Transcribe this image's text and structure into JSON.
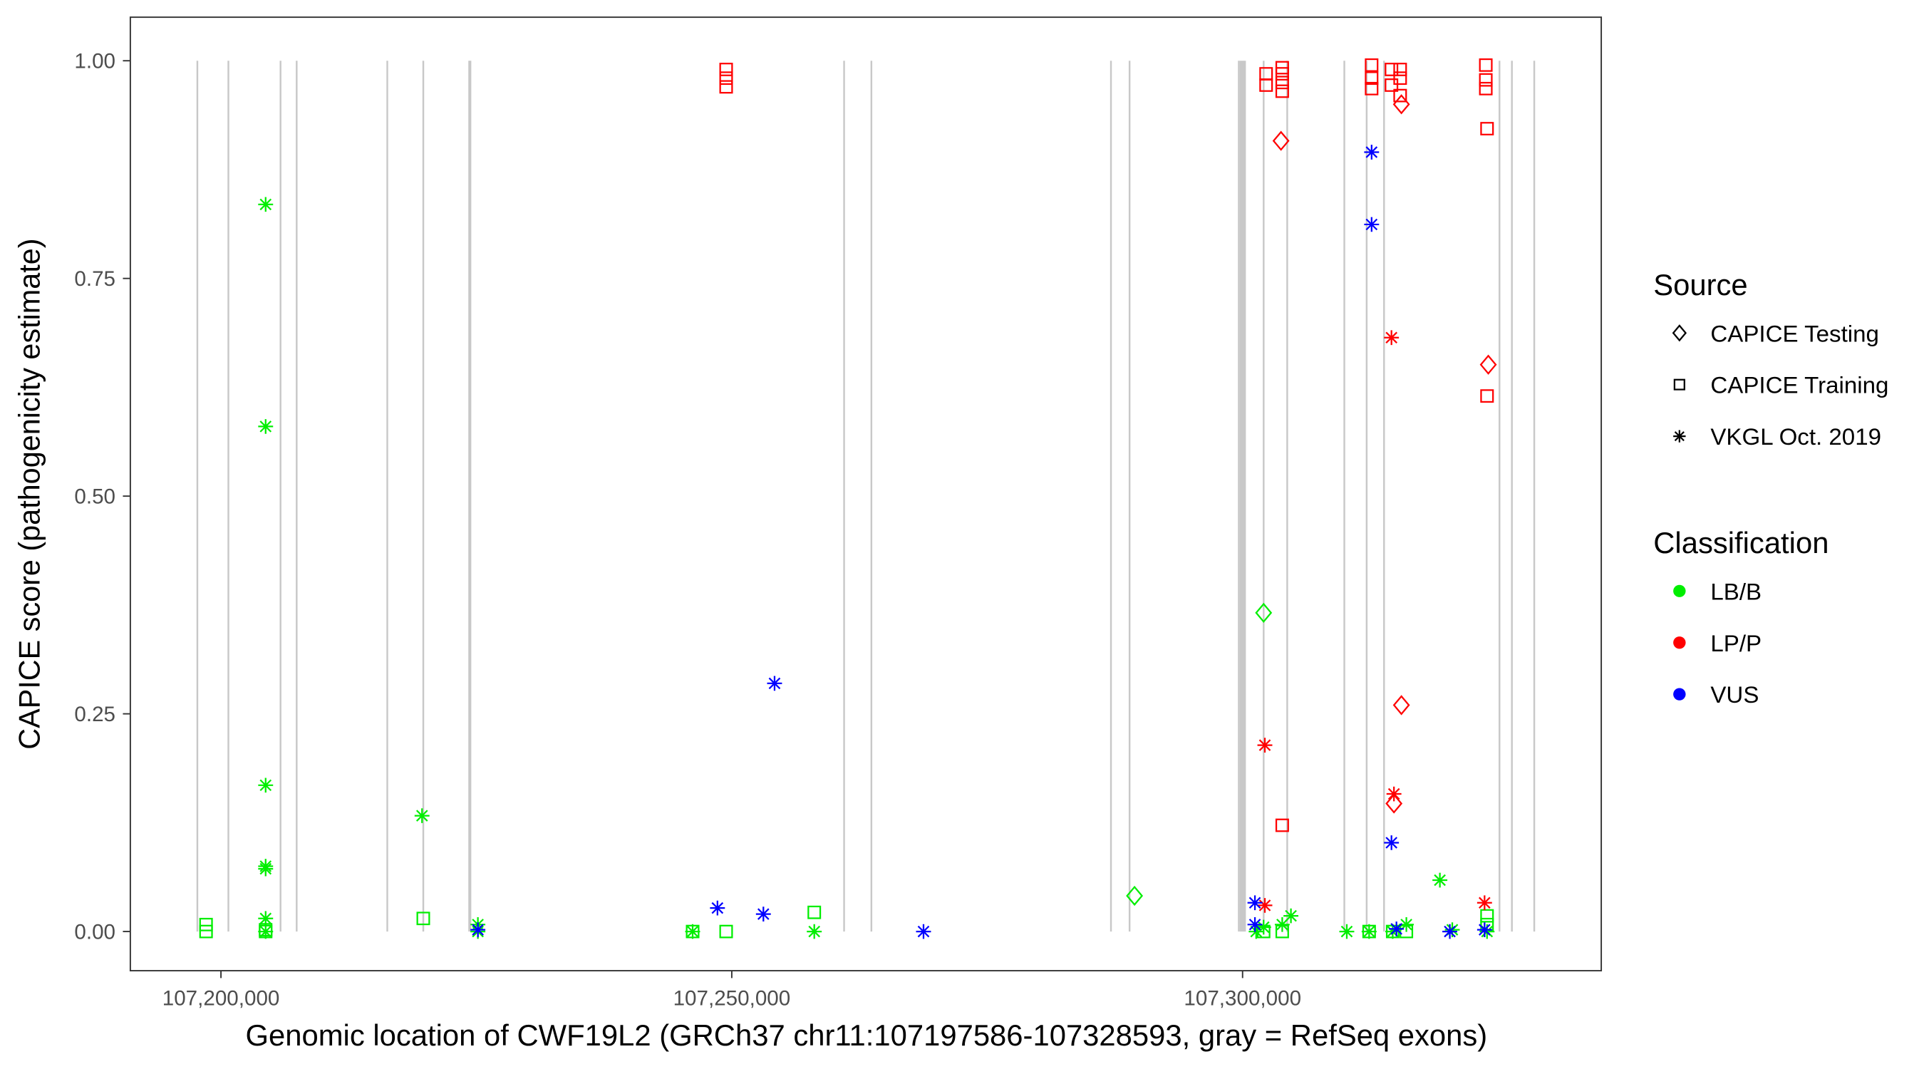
{
  "chart_data": {
    "type": "scatter",
    "xlabel": "Genomic location of CWF19L2 (GRCh37 chr11:107197586-107328593, gray = RefSeq exons)",
    "ylabel": "CAPICE score (pathogenicity estimate)",
    "xlim": [
      107191130,
      107335110
    ],
    "ylim": [
      -0.045,
      1.05
    ],
    "x_ticks": [
      107200000,
      107250000,
      107300000
    ],
    "x_tick_labels": [
      "107,200,000",
      "107,250,000",
      "107,300,000"
    ],
    "y_ticks": [
      0,
      0.25,
      0.5,
      0.75,
      1.0
    ],
    "y_tick_labels": [
      "0.00",
      "0.25",
      "0.50",
      "0.75",
      "1.00"
    ],
    "exons": [
      107197691,
      107200729,
      107205832,
      107207412,
      107216282,
      107219805,
      107224300,
      107224420,
      107260995,
      107263668,
      107287118,
      107288940,
      107299631,
      107299800,
      107299950,
      107300100,
      107300240,
      107302063,
      107304371,
      107309960,
      107312147,
      107313848,
      107325148,
      107326363,
      107328550
    ],
    "legend": {
      "source_title": "Source",
      "source_items": [
        {
          "label": "CAPICE Testing",
          "shape": "diamond"
        },
        {
          "label": "CAPICE Training",
          "shape": "square"
        },
        {
          "label": "VKGL Oct. 2019",
          "shape": "asterisk"
        }
      ],
      "class_title": "Classification",
      "class_items": [
        {
          "label": "LB/B",
          "color": "#00ee00"
        },
        {
          "label": "LP/P",
          "color": "#ff0000"
        },
        {
          "label": "VUS",
          "color": "#0000ff"
        }
      ],
      "placement": "right"
    },
    "colors": {
      "LB/B": "#00ee00",
      "LP/P": "#ff0000",
      "VUS": "#0000ff",
      "exon": "#c8c8c8"
    },
    "point_fields": [
      "position",
      "score",
      "classification",
      "source"
    ],
    "points": [
      [
        107198542,
        0.008,
        "LB/B",
        "CAPICE Training"
      ],
      [
        107198542,
        0.0,
        "LB/B",
        "CAPICE Training"
      ],
      [
        107204374,
        0.835,
        "LB/B",
        "VKGL Oct. 2019"
      ],
      [
        107204374,
        0.58,
        "LB/B",
        "VKGL Oct. 2019"
      ],
      [
        107204374,
        0.168,
        "LB/B",
        "VKGL Oct. 2019"
      ],
      [
        107204374,
        0.075,
        "LB/B",
        "VKGL Oct. 2019"
      ],
      [
        107204374,
        0.072,
        "LB/B",
        "VKGL Oct. 2019"
      ],
      [
        107204374,
        0.015,
        "LB/B",
        "VKGL Oct. 2019"
      ],
      [
        107204374,
        0.0,
        "LB/B",
        "VKGL Oct. 2019"
      ],
      [
        107204374,
        0.0,
        "LB/B",
        "CAPICE Training"
      ],
      [
        107204374,
        0.002,
        "LB/B",
        "CAPICE Training"
      ],
      [
        107219683,
        0.133,
        "LB/B",
        "VKGL Oct. 2019"
      ],
      [
        107219805,
        0.015,
        "LB/B",
        "CAPICE Training"
      ],
      [
        107225150,
        0.008,
        "LB/B",
        "VKGL Oct. 2019"
      ],
      [
        107225150,
        0.0,
        "LB/B",
        "VKGL Oct. 2019"
      ],
      [
        107225150,
        0.002,
        "VUS",
        "VKGL Oct. 2019"
      ],
      [
        107246170,
        0.0,
        "LB/B",
        "VKGL Oct. 2019"
      ],
      [
        107246170,
        0.0,
        "LB/B",
        "CAPICE Training"
      ],
      [
        107249450,
        0.0,
        "LB/B",
        "CAPICE Training"
      ],
      [
        107258077,
        0.022,
        "LB/B",
        "CAPICE Training"
      ],
      [
        107258077,
        0.0,
        "LB/B",
        "VKGL Oct. 2019"
      ],
      [
        107289424,
        0.041,
        "LB/B",
        "CAPICE Testing"
      ],
      [
        107302060,
        0.366,
        "LB/B",
        "CAPICE Testing"
      ],
      [
        107301331,
        0.0,
        "LB/B",
        "VKGL Oct. 2019"
      ],
      [
        107302060,
        0.0,
        "LB/B",
        "CAPICE Training"
      ],
      [
        107302060,
        0.005,
        "LB/B",
        "VKGL Oct. 2019"
      ],
      [
        107303883,
        0.0,
        "LB/B",
        "CAPICE Training"
      ],
      [
        107303883,
        0.008,
        "LB/B",
        "VKGL Oct. 2019"
      ],
      [
        107304733,
        0.018,
        "LB/B",
        "VKGL Oct. 2019"
      ],
      [
        107310201,
        0.0,
        "LB/B",
        "VKGL Oct. 2019"
      ],
      [
        107312388,
        0.0,
        "LB/B",
        "VKGL Oct. 2019"
      ],
      [
        107312388,
        0.0,
        "LB/B",
        "CAPICE Training"
      ],
      [
        107314696,
        0.0,
        "LB/B",
        "VKGL Oct. 2019"
      ],
      [
        107314696,
        0.0,
        "LB/B",
        "CAPICE Training"
      ],
      [
        107316033,
        0.008,
        "LB/B",
        "VKGL Oct. 2019"
      ],
      [
        107316033,
        0.0,
        "LB/B",
        "CAPICE Training"
      ],
      [
        107319313,
        0.059,
        "LB/B",
        "VKGL Oct. 2019"
      ],
      [
        107320528,
        0.002,
        "LB/B",
        "VKGL Oct. 2019"
      ],
      [
        107323930,
        0.018,
        "LB/B",
        "CAPICE Training"
      ],
      [
        107323930,
        0.008,
        "LB/B",
        "CAPICE Training"
      ],
      [
        107323930,
        0.0,
        "LB/B",
        "VKGL Oct. 2019"
      ],
      [
        107249450,
        0.99,
        "LP/P",
        "CAPICE Training"
      ],
      [
        107249450,
        0.98,
        "LP/P",
        "CAPICE Training"
      ],
      [
        107249450,
        0.97,
        "LP/P",
        "CAPICE Training"
      ],
      [
        107302303,
        0.985,
        "LP/P",
        "CAPICE Training"
      ],
      [
        107302303,
        0.972,
        "LP/P",
        "CAPICE Training"
      ],
      [
        107303883,
        0.992,
        "LP/P",
        "CAPICE Training"
      ],
      [
        107303883,
        0.985,
        "LP/P",
        "CAPICE Training"
      ],
      [
        107303883,
        0.975,
        "LP/P",
        "CAPICE Training"
      ],
      [
        107303883,
        0.965,
        "LP/P",
        "CAPICE Training"
      ],
      [
        107303761,
        0.908,
        "LP/P",
        "CAPICE Testing"
      ],
      [
        107303883,
        0.122,
        "LP/P",
        "CAPICE Training"
      ],
      [
        107302182,
        0.214,
        "LP/P",
        "VKGL Oct. 2019"
      ],
      [
        107302182,
        0.03,
        "LP/P",
        "VKGL Oct. 2019"
      ],
      [
        107312631,
        0.995,
        "LP/P",
        "CAPICE Training"
      ],
      [
        107312631,
        0.98,
        "LP/P",
        "CAPICE Training"
      ],
      [
        107312631,
        0.968,
        "LP/P",
        "CAPICE Training"
      ],
      [
        107314575,
        0.99,
        "LP/P",
        "CAPICE Training"
      ],
      [
        107314575,
        0.972,
        "LP/P",
        "CAPICE Training"
      ],
      [
        107315425,
        0.99,
        "LP/P",
        "CAPICE Training"
      ],
      [
        107315425,
        0.98,
        "LP/P",
        "CAPICE Training"
      ],
      [
        107315425,
        0.96,
        "LP/P",
        "CAPICE Training"
      ],
      [
        107315547,
        0.95,
        "LP/P",
        "CAPICE Testing"
      ],
      [
        107315547,
        0.26,
        "LP/P",
        "CAPICE Testing"
      ],
      [
        107314575,
        0.682,
        "LP/P",
        "VKGL Oct. 2019"
      ],
      [
        107314818,
        0.158,
        "LP/P",
        "VKGL Oct. 2019"
      ],
      [
        107314818,
        0.147,
        "LP/P",
        "CAPICE Testing"
      ],
      [
        107323809,
        0.995,
        "LP/P",
        "CAPICE Training"
      ],
      [
        107323809,
        0.978,
        "LP/P",
        "CAPICE Training"
      ],
      [
        107323809,
        0.968,
        "LP/P",
        "CAPICE Training"
      ],
      [
        107323930,
        0.922,
        "LP/P",
        "CAPICE Training"
      ],
      [
        107323930,
        0.615,
        "LP/P",
        "CAPICE Training"
      ],
      [
        107324052,
        0.651,
        "LP/P",
        "CAPICE Testing"
      ],
      [
        107323687,
        0.033,
        "LP/P",
        "VKGL Oct. 2019"
      ],
      [
        107248600,
        0.027,
        "VUS",
        "VKGL Oct. 2019"
      ],
      [
        107253096,
        0.02,
        "VUS",
        "VKGL Oct. 2019"
      ],
      [
        107254189,
        0.285,
        "VUS",
        "VKGL Oct. 2019"
      ],
      [
        107268769,
        0.0,
        "VUS",
        "VKGL Oct. 2019"
      ],
      [
        107301210,
        0.033,
        "VUS",
        "VKGL Oct. 2019"
      ],
      [
        107301210,
        0.008,
        "VUS",
        "VKGL Oct. 2019"
      ],
      [
        107312631,
        0.895,
        "VUS",
        "VKGL Oct. 2019"
      ],
      [
        107312631,
        0.812,
        "VUS",
        "VKGL Oct. 2019"
      ],
      [
        107314575,
        0.102,
        "VUS",
        "VKGL Oct. 2019"
      ],
      [
        107315061,
        0.003,
        "VUS",
        "VKGL Oct. 2019"
      ],
      [
        107320285,
        0.0,
        "VUS",
        "VKGL Oct. 2019"
      ],
      [
        107323687,
        0.002,
        "VUS",
        "VKGL Oct. 2019"
      ]
    ]
  }
}
